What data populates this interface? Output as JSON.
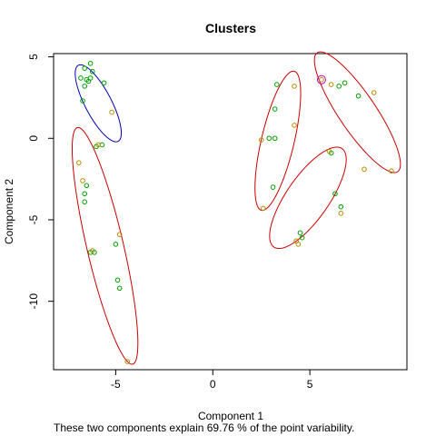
{
  "chart_data": {
    "type": "scatter",
    "title": "Clusters",
    "xlabel": "Component 1",
    "ylabel": "Component 2",
    "subtitle": "These two components explain 69.76 % of the point variability.",
    "xlim": [
      -8.2,
      10
    ],
    "ylim": [
      -14.2,
      5.2
    ],
    "x_ticks": [
      -5,
      0,
      5
    ],
    "y_ticks": [
      5,
      0,
      -5,
      -10
    ],
    "grid": false,
    "colors": {
      "green_points": "#00a000",
      "orange_points": "#b88a00",
      "ellipse_red": "#cc0000",
      "ellipse_blue": "#0000b0",
      "marker_purple": "#c000c0"
    },
    "points_green": [
      [
        -6.3,
        4.6
      ],
      [
        -6.6,
        4.3
      ],
      [
        -6.2,
        4.1
      ],
      [
        -6.8,
        3.7
      ],
      [
        -6.5,
        3.6
      ],
      [
        -6.6,
        3.2
      ],
      [
        -6.4,
        3.5
      ],
      [
        -6.3,
        3.7
      ],
      [
        -5.6,
        3.4
      ],
      [
        -6.7,
        2.3
      ],
      [
        -5.7,
        -0.4
      ],
      [
        -6.0,
        -0.5
      ],
      [
        -6.5,
        -2.9
      ],
      [
        -6.6,
        -3.4
      ],
      [
        -6.6,
        -3.9
      ],
      [
        -4.9,
        -8.7
      ],
      [
        -4.8,
        -9.2
      ],
      [
        -5.0,
        -6.5
      ],
      [
        -6.3,
        -7.0
      ],
      [
        -6.1,
        -7.0
      ],
      [
        3.3,
        3.3
      ],
      [
        3.2,
        1.8
      ],
      [
        3.2,
        0.0
      ],
      [
        2.9,
        0.0
      ],
      [
        3.1,
        -3.0
      ],
      [
        4.5,
        -5.8
      ],
      [
        4.6,
        -6.1
      ],
      [
        6.8,
        3.4
      ],
      [
        6.5,
        3.2
      ],
      [
        7.5,
        2.6
      ],
      [
        6.1,
        -0.9
      ],
      [
        6.3,
        -3.4
      ],
      [
        6.6,
        -4.2
      ]
    ],
    "points_orange": [
      [
        -5.2,
        1.6
      ],
      [
        -5.9,
        -0.4
      ],
      [
        -6.9,
        -1.5
      ],
      [
        -6.7,
        -2.6
      ],
      [
        -6.2,
        -6.9
      ],
      [
        -4.8,
        -5.9
      ],
      [
        -4.4,
        -13.7
      ],
      [
        4.2,
        3.2
      ],
      [
        6.1,
        3.3
      ],
      [
        8.3,
        2.8
      ],
      [
        2.6,
        -4.3
      ],
      [
        4.2,
        0.8
      ],
      [
        2.5,
        -0.1
      ],
      [
        4.3,
        -6.3
      ],
      [
        4.4,
        -6.5
      ],
      [
        6.0,
        -0.8
      ],
      [
        6.6,
        -4.6
      ],
      [
        7.8,
        -1.9
      ],
      [
        9.2,
        -2.0
      ]
    ],
    "clusters": [
      {
        "cx": -5.9,
        "cy": 2.15,
        "rx": 2.55,
        "ry": 0.7,
        "angle": -67,
        "color": "blue"
      },
      {
        "cx": -5.55,
        "cy": -6.6,
        "rx": 7.4,
        "ry": 0.95,
        "angle": -79,
        "color": "red"
      },
      {
        "cx": 3.35,
        "cy": -0.15,
        "rx": 4.35,
        "ry": 0.85,
        "angle": 79,
        "color": "red"
      },
      {
        "cx": 7.45,
        "cy": 1.6,
        "rx": 4.2,
        "ry": 1.0,
        "angle": -61,
        "color": "red"
      },
      {
        "cx": 4.9,
        "cy": -3.65,
        "rx": 3.5,
        "ry": 1.15,
        "angle": 61,
        "color": "red"
      }
    ],
    "highlight_point": [
      5.6,
      3.6
    ]
  }
}
